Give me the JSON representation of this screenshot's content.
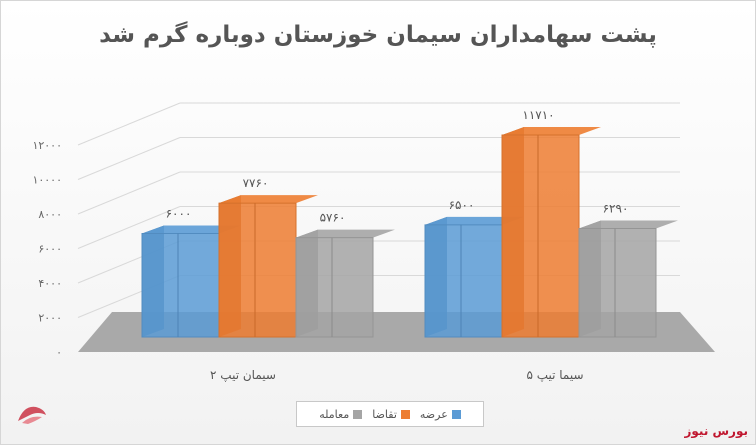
{
  "chart_data": {
    "type": "bar",
    "title": "پشت سهامداران سیمان خوزستان دوباره گرم شد",
    "categories": [
      "سیمان تیپ ۲",
      "سیما تیپ ۵"
    ],
    "series": [
      {
        "name": "عرضه",
        "values": [
          6000,
          6500
        ],
        "labels": [
          "۶۰۰۰",
          "۶۵۰۰"
        ],
        "color": "#5b9bd5"
      },
      {
        "name": "تقاضا",
        "values": [
          7760,
          11710
        ],
        "labels": [
          "۷۷۶۰",
          "۱۱۷۱۰"
        ],
        "color": "#ed7d31"
      },
      {
        "name": "معامله",
        "values": [
          5760,
          6290
        ],
        "labels": [
          "۵۷۶۰",
          "۶۲۹۰"
        ],
        "color": "#a5a5a5"
      }
    ],
    "y_ticks": [
      "۰",
      "۲۰۰۰",
      "۴۰۰۰",
      "۶۰۰۰",
      "۸۰۰۰",
      "۱۰۰۰۰",
      "۱۲۰۰۰"
    ],
    "ylim": [
      0,
      12000
    ],
    "grid": true,
    "legend_position": "bottom"
  },
  "brand": {
    "text": "بورس نیوز",
    "color": "#c0172f"
  }
}
